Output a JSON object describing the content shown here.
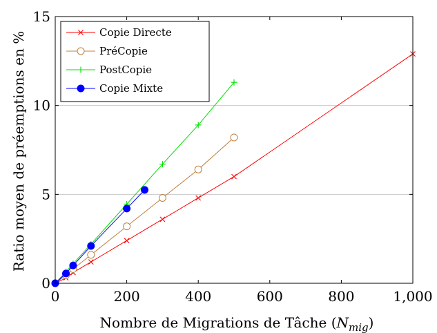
{
  "chart_data": {
    "type": "line",
    "xlabel": "Nombre de Migrations de Tâche (",
    "xlabel_var": "N",
    "xlabel_sub": "mig",
    "xlabel_end": ")",
    "ylabel": "Ratio moyen de préemptions en %",
    "xlim": [
      0,
      1000
    ],
    "ylim": [
      0,
      15
    ],
    "x_ticks": [
      0,
      200,
      400,
      600,
      800,
      1000
    ],
    "x_tick_labels": [
      "0",
      "200",
      "400",
      "600",
      "800",
      "1,000"
    ],
    "y_ticks": [
      0,
      5,
      10,
      15
    ],
    "y_tick_labels": [
      "0",
      "5",
      "10",
      "15"
    ],
    "grid": "horizontal",
    "legend_position": "top-left",
    "series": [
      {
        "name": "Copie Directe",
        "color": "#ff0000",
        "marker": "x",
        "x": [
          0,
          30,
          50,
          100,
          200,
          300,
          400,
          500,
          1000
        ],
        "y": [
          0,
          0.3,
          0.6,
          1.2,
          2.4,
          3.6,
          4.8,
          6.0,
          12.9
        ]
      },
      {
        "name": "PréCopie",
        "color": "#bf8040",
        "marker": "o-open",
        "x": [
          0,
          30,
          50,
          100,
          200,
          300,
          400,
          500
        ],
        "y": [
          0,
          0.45,
          0.8,
          1.6,
          3.2,
          4.8,
          6.4,
          8.2
        ]
      },
      {
        "name": "PostCopie",
        "color": "#00e000",
        "marker": "+",
        "x": [
          0,
          30,
          50,
          100,
          200,
          300,
          400,
          500
        ],
        "y": [
          0,
          0.65,
          1.1,
          2.2,
          4.45,
          6.7,
          8.9,
          11.3
        ]
      },
      {
        "name": "Copie Mixte",
        "color": "#0000ff",
        "marker": "o-filled",
        "x": [
          0,
          30,
          50,
          100,
          200,
          250
        ],
        "y": [
          0,
          0.55,
          1.0,
          2.1,
          4.2,
          5.25
        ]
      }
    ]
  }
}
